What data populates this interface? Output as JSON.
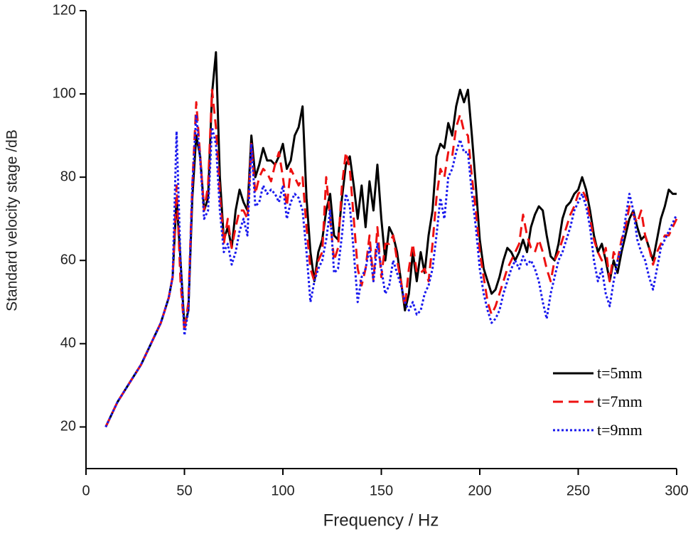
{
  "chart_data": {
    "type": "line",
    "x_label": "Frequency / Hz",
    "y_label": "Standard velocity stage /dB",
    "xlim": [
      0,
      300
    ],
    "ylim": [
      10,
      120
    ],
    "xticks": [
      0,
      50,
      100,
      150,
      200,
      250,
      300
    ],
    "yticks": [
      20,
      40,
      60,
      80,
      100,
      120
    ],
    "legend": "lower right",
    "x": [
      10,
      12,
      14,
      16,
      18,
      20,
      22,
      24,
      26,
      28,
      30,
      32,
      34,
      36,
      38,
      40,
      42,
      44,
      46,
      48,
      50,
      52,
      54,
      56,
      58,
      60,
      62,
      64,
      66,
      68,
      70,
      72,
      74,
      76,
      78,
      80,
      82,
      84,
      86,
      88,
      90,
      92,
      94,
      96,
      98,
      100,
      102,
      104,
      106,
      108,
      110,
      112,
      114,
      116,
      118,
      120,
      122,
      124,
      126,
      128,
      130,
      132,
      134,
      136,
      138,
      140,
      142,
      144,
      146,
      148,
      150,
      152,
      154,
      156,
      158,
      160,
      162,
      164,
      166,
      168,
      170,
      172,
      174,
      176,
      178,
      180,
      182,
      184,
      186,
      188,
      190,
      192,
      194,
      196,
      198,
      200,
      202,
      204,
      206,
      208,
      210,
      212,
      214,
      216,
      218,
      220,
      222,
      224,
      226,
      228,
      230,
      232,
      234,
      236,
      238,
      240,
      242,
      244,
      246,
      248,
      250,
      252,
      254,
      256,
      258,
      260,
      262,
      264,
      266,
      268,
      270,
      272,
      274,
      276,
      278,
      280,
      282,
      284,
      286,
      288,
      290,
      292,
      294,
      296,
      298,
      300
    ],
    "series": [
      {
        "name": "t=5mm",
        "color": "#000000",
        "line_style": "solid",
        "values": [
          20,
          22,
          24,
          26,
          27.5,
          29,
          30.5,
          32,
          33.5,
          35,
          37,
          39,
          41,
          43,
          45,
          48,
          51,
          56,
          75,
          60,
          44,
          48,
          75,
          90,
          85,
          72,
          75,
          100,
          110,
          80,
          65,
          68,
          63,
          72,
          77,
          74,
          72,
          90,
          80,
          83,
          87,
          84,
          84,
          83,
          85,
          88,
          82,
          84,
          90,
          92,
          97,
          75,
          62,
          55,
          62,
          65,
          72,
          76,
          66,
          65,
          75,
          83,
          85,
          78,
          70,
          78,
          68,
          79,
          72,
          83,
          70,
          60,
          68,
          66,
          62,
          55,
          48,
          52,
          62,
          55,
          62,
          57,
          66,
          72,
          85,
          88,
          87,
          93,
          90,
          97,
          101,
          98,
          101,
          90,
          78,
          65,
          58,
          55,
          52,
          53,
          56,
          60,
          63,
          62,
          60,
          62,
          65,
          62,
          68,
          71,
          73,
          72,
          66,
          61,
          60,
          64,
          70,
          73,
          74,
          76,
          77,
          80,
          77,
          72,
          66,
          62,
          64,
          60,
          55,
          60,
          57,
          62,
          66,
          70,
          72,
          68,
          65,
          66,
          63,
          60,
          65,
          70,
          73,
          77,
          76,
          76
        ]
      },
      {
        "name": "t=7mm",
        "color": "#ee1111",
        "line_style": "dashed",
        "values": [
          20,
          22,
          24,
          26,
          27.5,
          29,
          30.5,
          32,
          33.5,
          35,
          37,
          39,
          41,
          43,
          45,
          48,
          51,
          56,
          78,
          55,
          43,
          50,
          78,
          98,
          85,
          72,
          78,
          101,
          92,
          76,
          64,
          70,
          63,
          68,
          72,
          72,
          70,
          88,
          76,
          80,
          82,
          81,
          79,
          83,
          86,
          80,
          73,
          82,
          80,
          78,
          80,
          68,
          58,
          55,
          60,
          62,
          80,
          70,
          60,
          63,
          78,
          86,
          82,
          70,
          58,
          54,
          58,
          66,
          55,
          68,
          56,
          64,
          64,
          66,
          60,
          55,
          49,
          58,
          64,
          57,
          57,
          58,
          55,
          64,
          75,
          82,
          80,
          86,
          85,
          92,
          95,
          91,
          90,
          80,
          72,
          62,
          56,
          50,
          47,
          49,
          52,
          55,
          58,
          60,
          62,
          64,
          71,
          66,
          63,
          62,
          65,
          62,
          58,
          55,
          60,
          62,
          65,
          68,
          71,
          73,
          76,
          77,
          75,
          70,
          65,
          62,
          60,
          63,
          55,
          62,
          60,
          65,
          68,
          73,
          71,
          69,
          72,
          66,
          63,
          59,
          62,
          64,
          66,
          66,
          68,
          70
        ]
      },
      {
        "name": "t=9mm",
        "color": "#1a1aee",
        "line_style": "dotted",
        "values": [
          20,
          22,
          24,
          26,
          27.5,
          29,
          30.5,
          32,
          33.5,
          35,
          37,
          39,
          41,
          43,
          45,
          48,
          51,
          56,
          91,
          60,
          42,
          48,
          78,
          95,
          84,
          70,
          72,
          92,
          88,
          72,
          62,
          64,
          59,
          62,
          67,
          70,
          66,
          88,
          73,
          74,
          78,
          76,
          77,
          76,
          74,
          78,
          70,
          74,
          76,
          75,
          72,
          62,
          50,
          55,
          58,
          60,
          65,
          72,
          57,
          58,
          66,
          76,
          73,
          62,
          50,
          56,
          58,
          63,
          55,
          64,
          58,
          52,
          54,
          60,
          57,
          54,
          50,
          48,
          50,
          47,
          48,
          52,
          54,
          58,
          66,
          75,
          70,
          80,
          82,
          86,
          89,
          86,
          86,
          76,
          68,
          58,
          52,
          48,
          45,
          46,
          48,
          52,
          55,
          58,
          60,
          58,
          61,
          59,
          60,
          58,
          55,
          50,
          46,
          52,
          56,
          60,
          62,
          65,
          68,
          72,
          74,
          76,
          73,
          68,
          60,
          55,
          58,
          52,
          49,
          55,
          60,
          63,
          70,
          76,
          72,
          65,
          62,
          60,
          56,
          53,
          58,
          63,
          65,
          67,
          69,
          71
        ]
      }
    ]
  }
}
